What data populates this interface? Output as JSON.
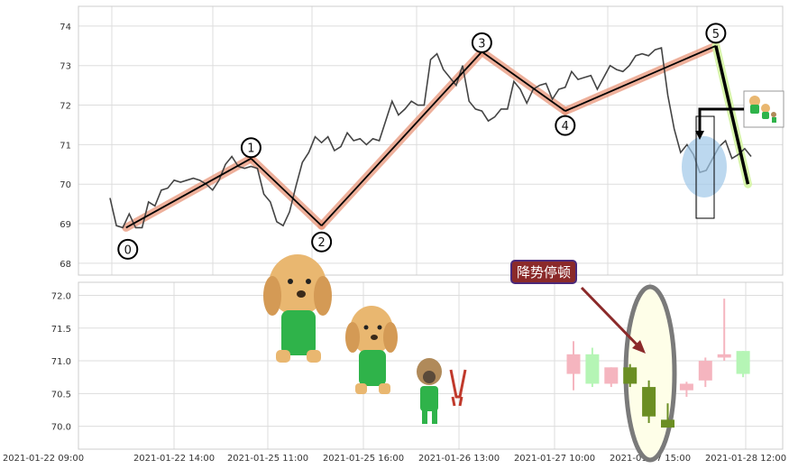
{
  "chart_data": [
    {
      "type": "line",
      "title": "",
      "xlabel": "",
      "ylabel": "",
      "ylim": [
        67.7,
        74.5
      ],
      "yticks": [
        68,
        69,
        70,
        71,
        72,
        73,
        74
      ],
      "grid": true,
      "price_series": {
        "color": "#444444",
        "x": [
          0,
          1,
          2,
          3,
          4,
          5,
          6,
          7,
          8,
          9,
          10,
          11,
          12,
          13,
          14,
          15,
          16,
          17,
          18,
          19,
          20,
          21,
          22,
          23,
          24,
          25,
          26,
          27,
          28,
          29,
          30,
          31,
          32,
          33,
          34,
          35,
          36,
          37,
          38,
          39,
          40,
          41,
          42,
          43,
          44,
          45,
          46,
          47,
          48,
          49,
          50,
          51,
          52,
          53,
          54,
          55,
          56,
          57,
          58,
          59,
          60,
          61,
          62,
          63,
          64,
          65,
          66,
          67,
          68,
          69,
          70,
          71,
          72,
          73,
          74,
          75,
          76,
          77,
          78,
          79,
          80,
          81,
          82,
          83,
          84,
          85,
          86,
          87,
          88,
          89,
          90,
          91,
          92,
          93,
          94,
          95,
          96,
          97,
          98,
          99,
          100
        ],
        "y": [
          69.65,
          68.95,
          68.9,
          69.25,
          68.9,
          68.9,
          69.55,
          69.45,
          69.85,
          69.9,
          70.1,
          70.05,
          70.1,
          70.15,
          70.1,
          70.0,
          69.85,
          70.1,
          70.5,
          70.7,
          70.45,
          70.4,
          70.45,
          70.4,
          69.75,
          69.55,
          69.05,
          68.95,
          69.3,
          69.95,
          70.55,
          70.8,
          71.2,
          71.05,
          71.2,
          70.85,
          70.95,
          71.3,
          71.1,
          71.15,
          71.0,
          71.15,
          71.1,
          71.6,
          72.1,
          71.75,
          71.9,
          72.1,
          72.0,
          72.0,
          73.15,
          73.3,
          72.9,
          72.7,
          72.5,
          73.0,
          72.1,
          71.9,
          71.85,
          71.6,
          71.7,
          71.9,
          71.9,
          72.6,
          72.4,
          72.05,
          72.4,
          72.5,
          72.55,
          72.15,
          72.4,
          72.45,
          72.85,
          72.65,
          72.7,
          72.75,
          72.4,
          72.7,
          73.0,
          72.9,
          72.85,
          73.0,
          73.25,
          73.3,
          73.25,
          73.4,
          73.45,
          72.25,
          71.4,
          70.8,
          71.0,
          70.75,
          70.3,
          70.35,
          70.65,
          70.95,
          71.1,
          70.65,
          70.75,
          70.9,
          70.7
        ]
      },
      "wave_highlight_color": "#e9967a",
      "wave_points": [
        {
          "label": "0",
          "x": 2.5,
          "y": 68.9
        },
        {
          "label": "1",
          "x": 22,
          "y": 70.65
        },
        {
          "label": "2",
          "x": 33,
          "y": 68.95
        },
        {
          "label": "3",
          "x": 58,
          "y": 73.35
        },
        {
          "label": "4",
          "x": 71,
          "y": 71.85
        },
        {
          "label": "5",
          "x": 94.5,
          "y": 73.5
        },
        {
          "x": 99.5,
          "y": 70.0
        }
      ],
      "down_leg_highlight_color": "#d4f5a3",
      "marker_circle_color": "#9fc8e8"
    },
    {
      "type": "candlestick",
      "title": "",
      "ylim": [
        69.65,
        72.2
      ],
      "yticks": [
        70.0,
        70.5,
        71.0,
        71.5,
        72.0
      ],
      "ytick_labels": [
        "70.0",
        "70.5",
        "71.0",
        "71.5",
        "72.0"
      ],
      "grid": true,
      "x_tick_labels": [
        "2021-01-22 09:00",
        "2021-01-22 14:00",
        "2021-01-25 11:00",
        "2021-01-25 16:00",
        "2021-01-26 13:00",
        "2021-01-27 10:00",
        "2021-01-27 15:00",
        "2021-01-28 12:00"
      ],
      "colors": {
        "up_faded": "#f5b5bf",
        "down_faded": "#b5f5b5",
        "down_solid": "#6b8e23"
      },
      "candles": [
        {
          "open": 70.8,
          "high": 71.3,
          "low": 70.55,
          "close": 71.1,
          "color": "up_faded"
        },
        {
          "open": 70.65,
          "high": 71.2,
          "low": 70.6,
          "close": 71.1,
          "color": "down_faded"
        },
        {
          "open": 70.65,
          "high": 70.9,
          "low": 70.6,
          "close": 70.9,
          "color": "up_faded"
        },
        {
          "open": 70.9,
          "high": 70.95,
          "low": 70.6,
          "close": 70.65,
          "color": "down_solid"
        },
        {
          "open": 70.6,
          "high": 70.7,
          "low": 70.05,
          "close": 70.15,
          "color": "down_solid"
        },
        {
          "open": 70.1,
          "high": 70.35,
          "low": 69.98,
          "close": 69.98,
          "color": "down_solid"
        },
        {
          "open": 70.55,
          "high": 70.68,
          "low": 70.45,
          "close": 70.65,
          "color": "up_faded"
        },
        {
          "open": 70.7,
          "high": 71.05,
          "low": 70.6,
          "close": 71.0,
          "color": "up_faded"
        },
        {
          "open": 71.05,
          "high": 71.95,
          "low": 71.0,
          "close": 71.1,
          "color": "up_faded"
        },
        {
          "open": 71.15,
          "high": 71.15,
          "low": 70.75,
          "close": 70.8,
          "color": "down_faded"
        }
      ],
      "highlight_ellipse": {
        "fill": "#fefee8",
        "stroke": "#7a7a7a"
      },
      "annotation": {
        "text": "降势停顿",
        "box_color": "#8b2a2a",
        "border_color": "#4b2a7a",
        "arrow_color": "#8b2a2a"
      }
    }
  ]
}
